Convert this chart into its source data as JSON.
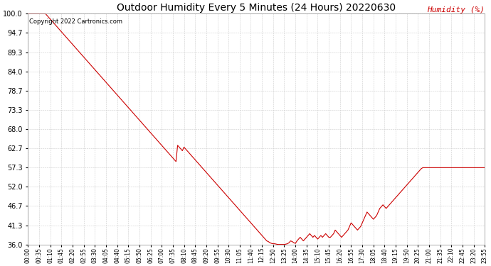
{
  "title": "Outdoor Humidity Every 5 Minutes (24 Hours) 20220630",
  "ylabel": "Humidity (%)",
  "copyright_text": "Copyright 2022 Cartronics.com",
  "line_color": "#cc0000",
  "bg_color": "#ffffff",
  "grid_color": "#cccccc",
  "title_color": "#000000",
  "ylabel_color": "#cc0000",
  "yticks": [
    36.0,
    41.3,
    46.7,
    52.0,
    57.3,
    62.7,
    68.0,
    73.3,
    78.7,
    84.0,
    89.3,
    94.7,
    100.0
  ],
  "ylim": [
    36.0,
    100.0
  ],
  "humidity_values": [
    100.0,
    100.0,
    100.0,
    100.0,
    100.0,
    100.0,
    100.0,
    100.0,
    100.0,
    100.0,
    100.0,
    100.0,
    99.5,
    99.0,
    98.5,
    98.0,
    97.5,
    97.0,
    96.5,
    96.0,
    95.5,
    95.0,
    94.5,
    94.0,
    93.5,
    93.0,
    92.5,
    92.0,
    91.5,
    91.0,
    90.5,
    90.0,
    89.5,
    89.0,
    88.5,
    88.0,
    87.5,
    87.0,
    86.5,
    86.0,
    85.5,
    85.0,
    84.5,
    84.0,
    83.5,
    83.0,
    82.5,
    82.0,
    81.5,
    81.0,
    80.5,
    80.0,
    79.5,
    79.0,
    78.5,
    78.0,
    77.5,
    77.0,
    76.5,
    76.0,
    75.5,
    75.0,
    74.5,
    74.0,
    73.5,
    73.0,
    72.5,
    72.0,
    71.5,
    71.0,
    70.5,
    70.0,
    69.5,
    69.0,
    68.5,
    68.0,
    67.5,
    67.0,
    66.5,
    66.0,
    65.5,
    65.0,
    64.5,
    64.0,
    63.5,
    63.0,
    62.5,
    62.0,
    61.5,
    61.0,
    60.5,
    60.0,
    59.5,
    59.0,
    63.5,
    63.0,
    62.5,
    62.0,
    63.0,
    62.5,
    62.0,
    61.5,
    61.0,
    60.5,
    60.0,
    59.5,
    59.0,
    58.5,
    58.0,
    57.5,
    57.0,
    56.5,
    56.0,
    55.5,
    55.0,
    54.5,
    54.0,
    53.5,
    53.0,
    52.5,
    52.0,
    51.5,
    51.0,
    50.5,
    50.0,
    49.5,
    49.0,
    48.5,
    48.0,
    47.5,
    47.0,
    46.5,
    46.0,
    45.5,
    45.0,
    44.5,
    44.0,
    43.5,
    43.0,
    42.5,
    42.0,
    41.5,
    41.0,
    40.5,
    40.0,
    39.5,
    39.0,
    38.5,
    38.0,
    37.5,
    37.0,
    36.8,
    36.5,
    36.3,
    36.2,
    36.2,
    36.1,
    36.0,
    36.0,
    36.0,
    36.0,
    36.0,
    36.1,
    36.2,
    36.5,
    37.0,
    36.8,
    36.5,
    36.3,
    37.0,
    37.5,
    38.0,
    37.5,
    37.0,
    37.5,
    38.0,
    38.5,
    39.0,
    38.5,
    38.0,
    38.5,
    38.0,
    37.5,
    38.0,
    38.5,
    38.0,
    38.5,
    39.0,
    38.5,
    38.0,
    38.0,
    38.5,
    39.0,
    40.0,
    39.5,
    39.0,
    38.5,
    38.0,
    38.5,
    39.0,
    39.5,
    40.0,
    41.0,
    42.0,
    41.5,
    41.0,
    40.5,
    40.0,
    40.5,
    41.0,
    42.0,
    43.0,
    44.0,
    45.0,
    44.5,
    44.0,
    43.5,
    43.0,
    43.5,
    44.0,
    45.0,
    46.0,
    46.5,
    47.0,
    46.5,
    46.0,
    46.5,
    47.0,
    47.5,
    48.0,
    48.5,
    49.0,
    49.5,
    50.0,
    50.5,
    51.0,
    51.5,
    52.0,
    52.5,
    53.0,
    53.5,
    54.0,
    54.5,
    55.0,
    55.5,
    56.0,
    56.5,
    57.0,
    57.3,
    57.3,
    57.3,
    57.3,
    57.3,
    57.3,
    57.3,
    57.3,
    57.3,
    57.3,
    57.3,
    57.3,
    57.3,
    57.3,
    57.3,
    57.3,
    57.3,
    57.3,
    57.3,
    57.3,
    57.3,
    57.3,
    57.3,
    57.3,
    57.3,
    57.3,
    57.3,
    57.3,
    57.3,
    57.3,
    57.3,
    57.3,
    57.3,
    57.3,
    57.3,
    57.3,
    57.3,
    57.3,
    57.3,
    57.3
  ],
  "xtick_step": 7,
  "n_points": 288,
  "label_fontsize": 5.5,
  "title_fontsize": 10,
  "ytick_fontsize": 7,
  "copyright_fontsize": 6
}
